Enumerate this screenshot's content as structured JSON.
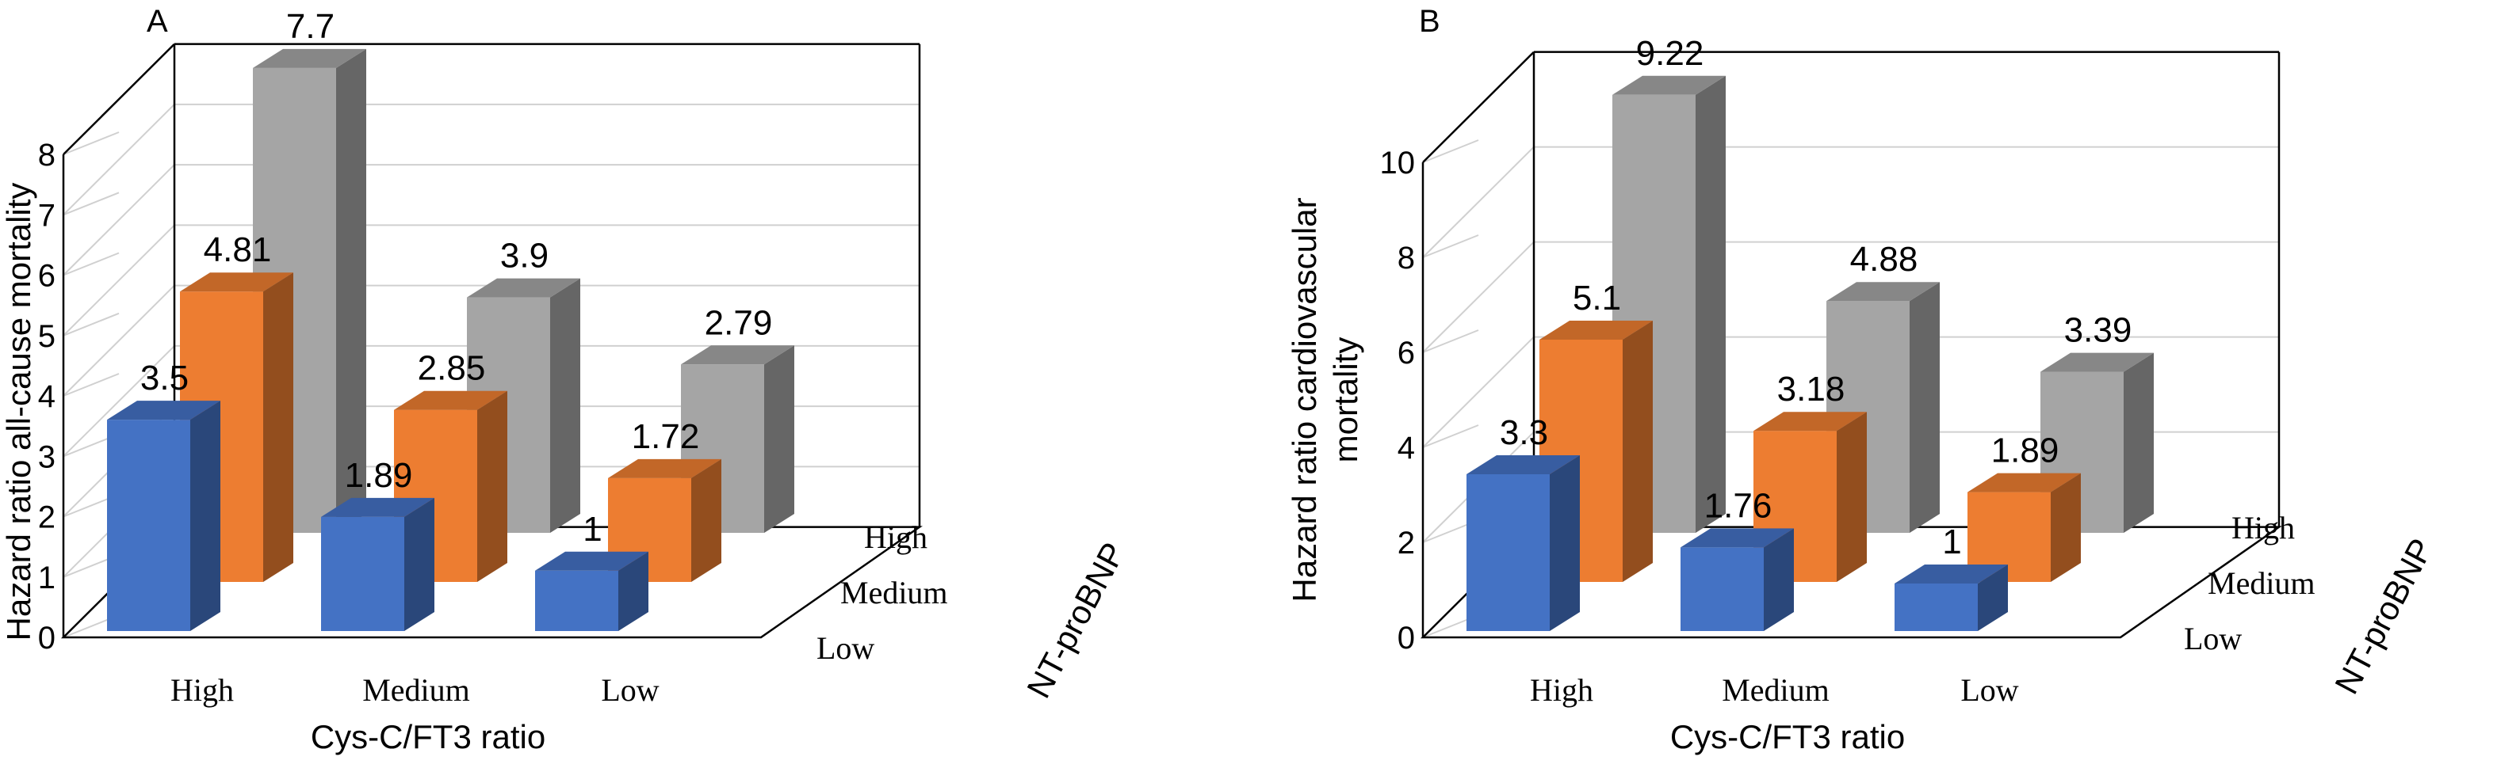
{
  "panels": [
    {
      "panel_label": "A",
      "chart_data": {
        "type": "bar",
        "subtype": "3d-clustered-depth",
        "ylabel": "Hazard ratio all-cause mortality",
        "xlabel": "Cys-C/FT3 ratio",
        "zlabel": "NT-proBNP",
        "categories": [
          "High",
          "Medium",
          "Low"
        ],
        "depth_categories": [
          "High",
          "Medium",
          "Low"
        ],
        "ylim": [
          0,
          8
        ],
        "yticks": [
          "0",
          "1",
          "2",
          "3",
          "4",
          "5",
          "6",
          "7",
          "8"
        ],
        "series": [
          {
            "name": "Low",
            "color": "#4472c4",
            "values": [
              3.5,
              1.89,
              1
            ],
            "labels": [
              "3.5",
              "1.89",
              "1"
            ]
          },
          {
            "name": "Medium",
            "color": "#ed7d31",
            "values": [
              4.81,
              2.85,
              1.72
            ],
            "labels": [
              "4.81",
              "2.85",
              "1.72"
            ]
          },
          {
            "name": "High",
            "color": "#a5a5a5",
            "values": [
              7.7,
              3.9,
              2.79
            ],
            "labels": [
              "7.7",
              "3.9",
              "2.79"
            ]
          }
        ]
      }
    },
    {
      "panel_label": "B",
      "chart_data": {
        "type": "bar",
        "subtype": "3d-clustered-depth",
        "ylabel": "Hazard ratio cardiovascular mortality",
        "ylabel_lines": [
          "Hazard ratio cardiovascular",
          "mortality"
        ],
        "xlabel": "Cys-C/FT3 ratio",
        "zlabel": "NT-proBNP",
        "categories": [
          "High",
          "Medium",
          "Low"
        ],
        "depth_categories": [
          "High",
          "Medium",
          "Low"
        ],
        "ylim": [
          0,
          10
        ],
        "yticks": [
          "0",
          "2",
          "4",
          "6",
          "8",
          "10"
        ],
        "series": [
          {
            "name": "Low",
            "color": "#4472c4",
            "values": [
              3.3,
              1.76,
              1
            ],
            "labels": [
              "3.3",
              "1.76",
              "1"
            ]
          },
          {
            "name": "Medium",
            "color": "#ed7d31",
            "values": [
              5.1,
              3.18,
              1.89
            ],
            "labels": [
              "5.1",
              "3.18",
              "1.89"
            ]
          },
          {
            "name": "High",
            "color": "#a5a5a5",
            "values": [
              9.22,
              4.88,
              3.39
            ],
            "labels": [
              "9.22",
              "4.88",
              "3.39"
            ]
          }
        ]
      }
    }
  ]
}
